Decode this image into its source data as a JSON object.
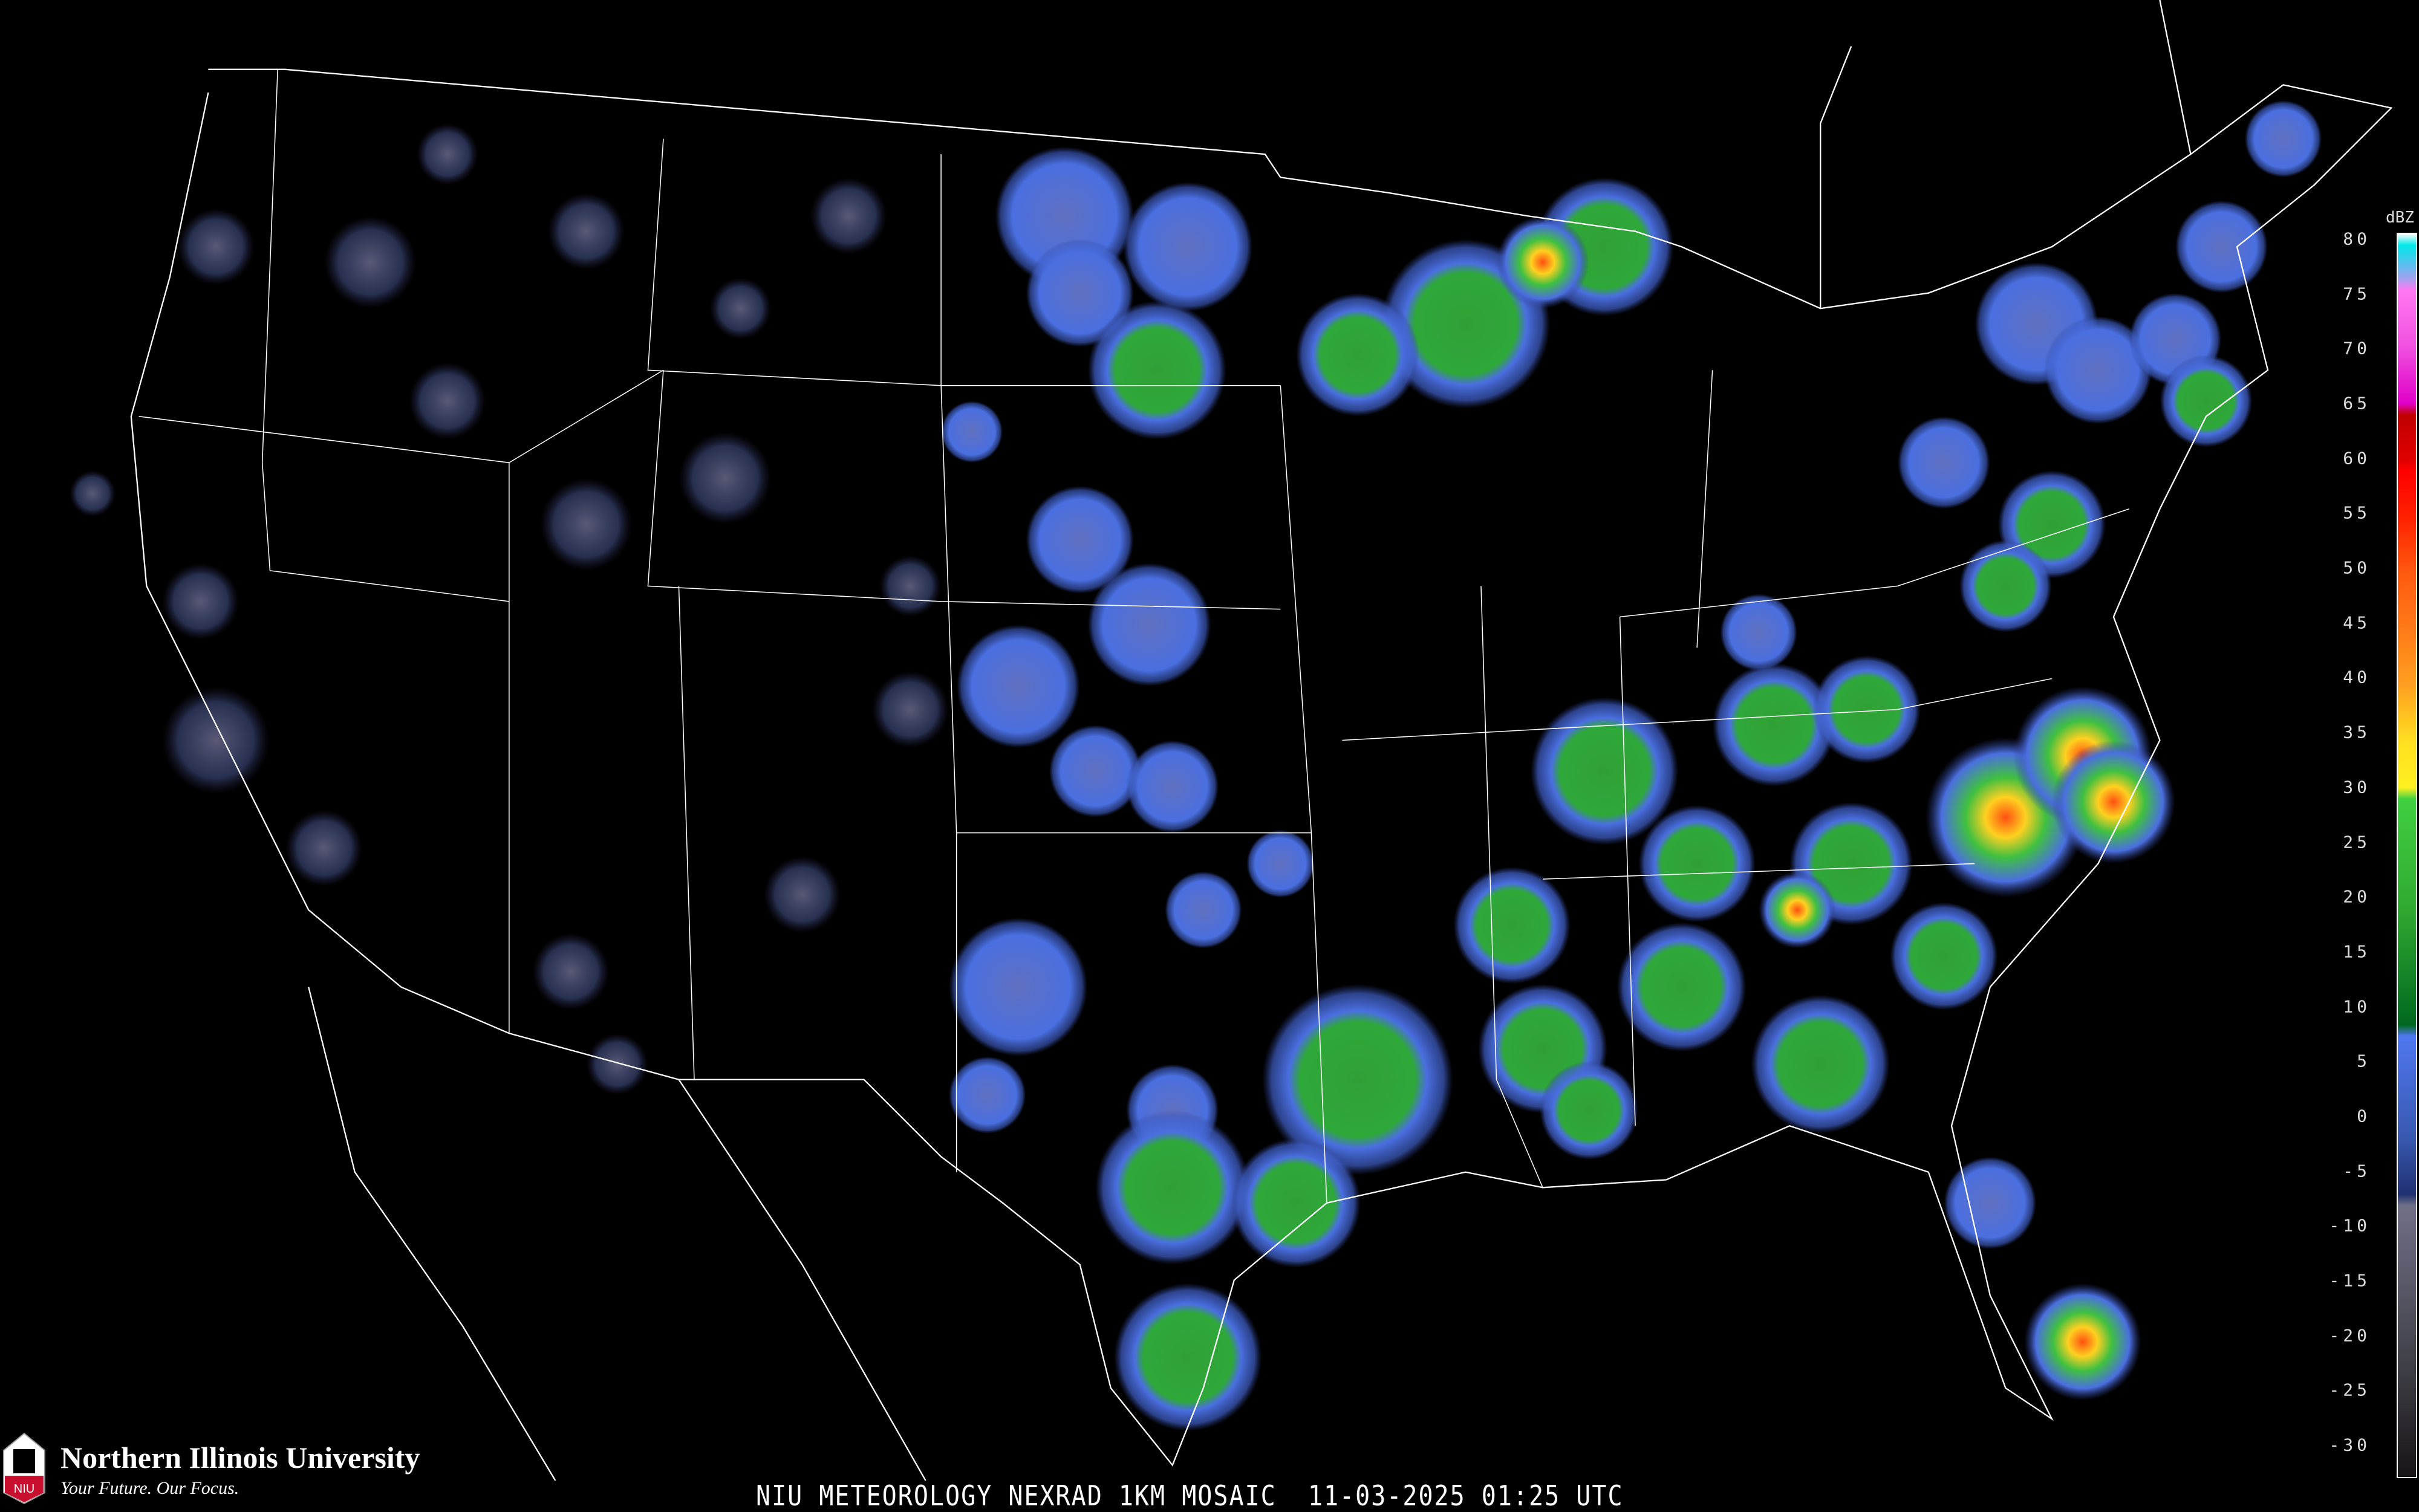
{
  "title": "NIU METEOROLOGY NEXRAD 1KM MOSAIC",
  "timestamp": "11-03-2025 01:25 UTC",
  "logo": {
    "name": "Northern Illinois University",
    "tagline": "Your Future. Our Focus.",
    "mark": "NIU",
    "brand_color": "#c8102e"
  },
  "colorbar": {
    "unit": "dBZ",
    "ticks": [
      "80",
      "75",
      "70",
      "65",
      "60",
      "55",
      "50",
      "45",
      "40",
      "35",
      "30",
      "25",
      "20",
      "15",
      "10",
      "5",
      "0",
      "-5",
      "-10",
      "-15",
      "-20",
      "-25",
      "-30"
    ],
    "range": [
      -30,
      80
    ],
    "color_stops": [
      {
        "dbz": 80,
        "color": "#ffffff"
      },
      {
        "dbz": 79,
        "color": "#00e8e8"
      },
      {
        "dbz": 77,
        "color": "#6ab8f0"
      },
      {
        "dbz": 76,
        "color": "#a8a0ee"
      },
      {
        "dbz": 75,
        "color": "#ff78f0"
      },
      {
        "dbz": 70,
        "color": "#f050e0"
      },
      {
        "dbz": 65,
        "color": "#e000c8"
      },
      {
        "dbz": 64,
        "color": "#c00000"
      },
      {
        "dbz": 60,
        "color": "#e00000"
      },
      {
        "dbz": 59,
        "color": "#ff0000"
      },
      {
        "dbz": 55,
        "color": "#ff2000"
      },
      {
        "dbz": 50,
        "color": "#ff5a10"
      },
      {
        "dbz": 45,
        "color": "#ff7a18"
      },
      {
        "dbz": 40,
        "color": "#ffa020"
      },
      {
        "dbz": 35,
        "color": "#ffe020"
      },
      {
        "dbz": 31,
        "color": "#fff020"
      },
      {
        "dbz": 30,
        "color": "#40d040"
      },
      {
        "dbz": 20,
        "color": "#30a830"
      },
      {
        "dbz": 10,
        "color": "#006820"
      },
      {
        "dbz": 9,
        "color": "#5078f0"
      },
      {
        "dbz": 0,
        "color": "#3858b0"
      },
      {
        "dbz": -5,
        "color": "#203070"
      },
      {
        "dbz": -6,
        "color": "#707088"
      },
      {
        "dbz": -20,
        "color": "#404048"
      },
      {
        "dbz": -30,
        "color": "#181418"
      }
    ]
  },
  "colors": {
    "background": "#000000",
    "border_lines": "#ffffff",
    "county_lines": "#555555",
    "highways": "#8a4a20",
    "echo_light": "#4a6fe0",
    "echo_moderate": "#2fa83a",
    "echo_heavy": "#ffd020",
    "echo_intense": "#ff3010"
  }
}
